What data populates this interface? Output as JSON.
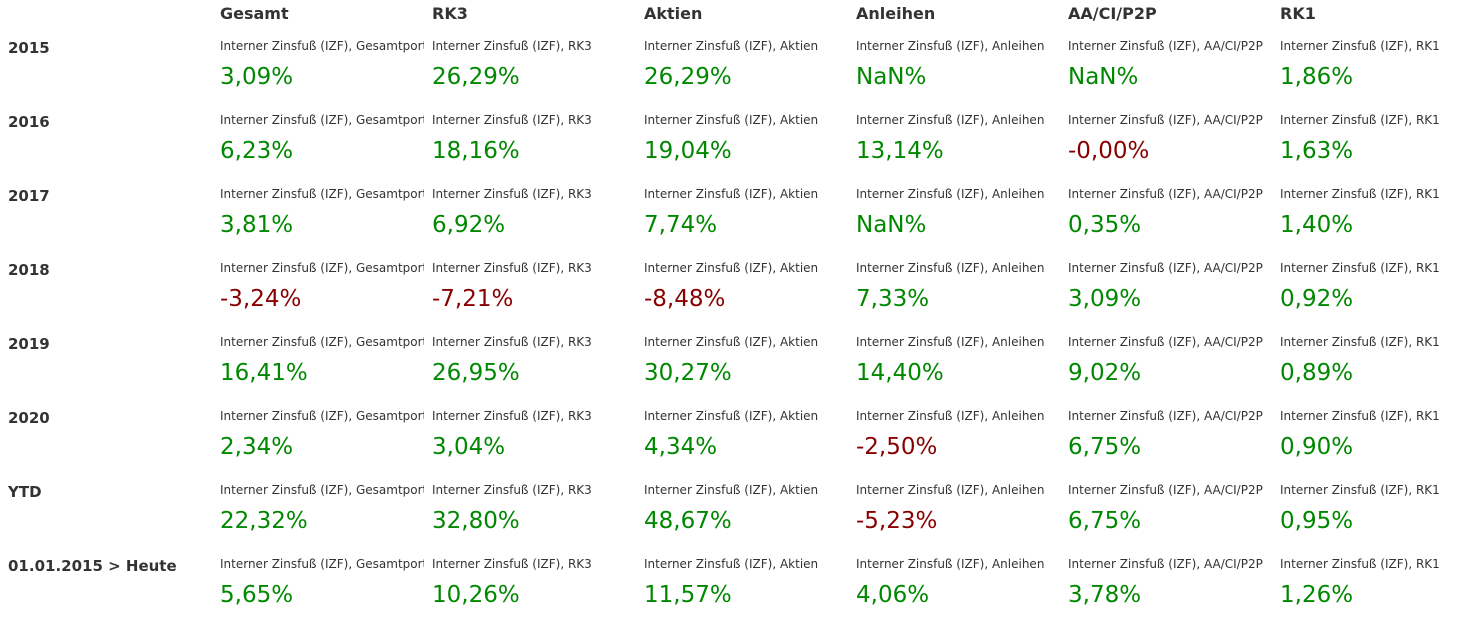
{
  "colors": {
    "positive": "#008800",
    "negative": "#880000",
    "text": "#333333"
  },
  "columns": [
    {
      "header": "Gesamt",
      "label": "Interner Zinsfuß (IZF), Gesamtport"
    },
    {
      "header": "RK3",
      "label": "Interner Zinsfuß (IZF), RK3"
    },
    {
      "header": "Aktien",
      "label": "Interner Zinsfuß (IZF), Aktien"
    },
    {
      "header": "Anleihen",
      "label": "Interner Zinsfuß (IZF), Anleihen"
    },
    {
      "header": "AA/CI/P2P",
      "label": "Interner Zinsfuß (IZF), AA/CI/P2P"
    },
    {
      "header": "RK1",
      "label": "Interner Zinsfuß (IZF), RK1"
    }
  ],
  "rows": [
    {
      "period": "2015",
      "values": [
        "3,09%",
        "26,29%",
        "26,29%",
        "NaN%",
        "NaN%",
        "1,86%"
      ],
      "negative": [
        false,
        false,
        false,
        false,
        false,
        false
      ]
    },
    {
      "period": "2016",
      "values": [
        "6,23%",
        "18,16%",
        "19,04%",
        "13,14%",
        "-0,00%",
        "1,63%"
      ],
      "negative": [
        false,
        false,
        false,
        false,
        true,
        false
      ]
    },
    {
      "period": "2017",
      "values": [
        "3,81%",
        "6,92%",
        "7,74%",
        "NaN%",
        "0,35%",
        "1,40%"
      ],
      "negative": [
        false,
        false,
        false,
        false,
        false,
        false
      ]
    },
    {
      "period": "2018",
      "values": [
        "-3,24%",
        "-7,21%",
        "-8,48%",
        "7,33%",
        "3,09%",
        "0,92%"
      ],
      "negative": [
        true,
        true,
        true,
        false,
        false,
        false
      ]
    },
    {
      "period": "2019",
      "values": [
        "16,41%",
        "26,95%",
        "30,27%",
        "14,40%",
        "9,02%",
        "0,89%"
      ],
      "negative": [
        false,
        false,
        false,
        false,
        false,
        false
      ]
    },
    {
      "period": "2020",
      "values": [
        "2,34%",
        "3,04%",
        "4,34%",
        "-2,50%",
        "6,75%",
        "0,90%"
      ],
      "negative": [
        false,
        false,
        false,
        true,
        false,
        false
      ]
    },
    {
      "period": "YTD",
      "values": [
        "22,32%",
        "32,80%",
        "48,67%",
        "-5,23%",
        "6,75%",
        "0,95%"
      ],
      "negative": [
        false,
        false,
        false,
        true,
        false,
        false
      ]
    },
    {
      "period": "01.01.2015 > Heute",
      "values": [
        "5,65%",
        "10,26%",
        "11,57%",
        "4,06%",
        "3,78%",
        "1,26%"
      ],
      "negative": [
        false,
        false,
        false,
        false,
        false,
        false
      ]
    }
  ]
}
